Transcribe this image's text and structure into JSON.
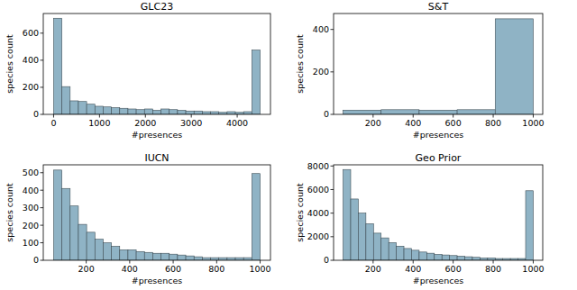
{
  "chart_data": [
    {
      "type": "histogram",
      "title": "GLC23",
      "x_label": "#presences",
      "y_label": "species count",
      "color": "#8fb3c5",
      "bins": [
        0,
        180,
        360,
        540,
        720,
        900,
        1080,
        1260,
        1440,
        1620,
        1800,
        1980,
        2160,
        2340,
        2520,
        2700,
        2880,
        3060,
        3240,
        3420,
        3600,
        3780,
        3960,
        4140,
        4320,
        4500
      ],
      "values": [
        710,
        205,
        100,
        95,
        75,
        60,
        55,
        50,
        45,
        40,
        35,
        40,
        30,
        40,
        35,
        30,
        25,
        25,
        20,
        20,
        15,
        20,
        15,
        20,
        475
      ],
      "xlim": [
        -225,
        4725
      ],
      "ylim": [
        0,
        745
      ],
      "xticks": [
        0,
        1000,
        2000,
        3000,
        4000
      ],
      "yticks": [
        0,
        200,
        400,
        600
      ]
    },
    {
      "type": "histogram",
      "title": "S&T",
      "x_label": "#presences",
      "y_label": "species count",
      "color": "#8fb3c5",
      "bins": [
        50,
        240,
        430,
        620,
        810,
        1000
      ],
      "values": [
        20,
        22,
        20,
        22,
        450
      ],
      "xlim": [
        2.5,
        1047.5
      ],
      "ylim": [
        0,
        475
      ],
      "xticks": [
        200,
        400,
        600,
        800,
        1000
      ],
      "yticks": [
        0,
        200,
        400
      ]
    },
    {
      "type": "histogram",
      "title": "IUCN",
      "x_label": "#presences",
      "y_label": "species count",
      "color": "#8fb3c5",
      "bins": [
        50,
        88,
        126,
        164,
        202,
        240,
        278,
        316,
        354,
        392,
        430,
        468,
        506,
        544,
        582,
        620,
        658,
        696,
        734,
        772,
        810,
        848,
        886,
        924,
        962,
        1000
      ],
      "values": [
        515,
        410,
        310,
        205,
        160,
        120,
        100,
        80,
        60,
        60,
        50,
        45,
        40,
        40,
        35,
        30,
        25,
        20,
        15,
        15,
        15,
        15,
        15,
        15,
        495
      ],
      "xlim": [
        2.5,
        1047.5
      ],
      "ylim": [
        0,
        545
      ],
      "xticks": [
        200,
        400,
        600,
        800,
        1000
      ],
      "yticks": [
        0,
        100,
        200,
        300,
        400,
        500
      ]
    },
    {
      "type": "histogram",
      "title": "Geo Prior",
      "x_label": "#presences",
      "y_label": "species count",
      "color": "#8fb3c5",
      "bins": [
        50,
        88,
        126,
        164,
        202,
        240,
        278,
        316,
        354,
        392,
        430,
        468,
        506,
        544,
        582,
        620,
        658,
        696,
        734,
        772,
        810,
        848,
        886,
        924,
        962,
        1000
      ],
      "values": [
        7700,
        5200,
        4000,
        3100,
        2300,
        1900,
        1500,
        1200,
        1000,
        850,
        700,
        600,
        500,
        450,
        400,
        350,
        300,
        250,
        200,
        200,
        150,
        150,
        150,
        150,
        5900
      ],
      "xlim": [
        2.5,
        1047.5
      ],
      "ylim": [
        0,
        8100
      ],
      "xticks": [
        200,
        400,
        600,
        800,
        1000
      ],
      "yticks": [
        0,
        2000,
        4000,
        6000,
        8000
      ]
    }
  ]
}
